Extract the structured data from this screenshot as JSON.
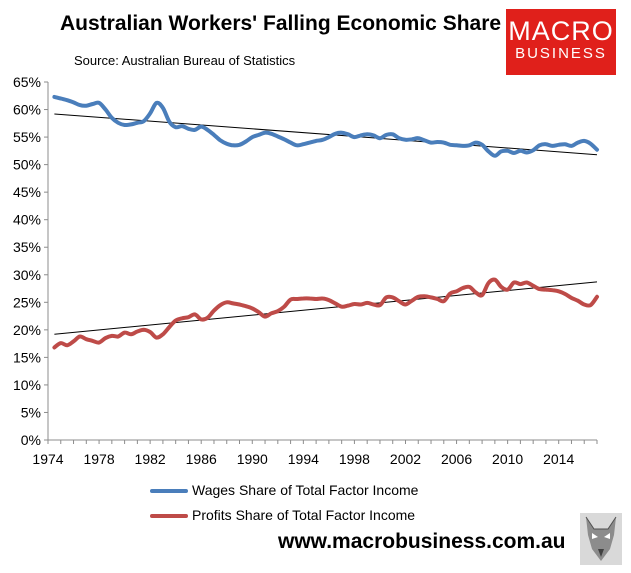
{
  "title": "Australian Workers' Falling Economic Share",
  "source": "Source: Australian Bureau of Statistics",
  "logo": {
    "line1": "MACRO",
    "line2": "BUSINESS",
    "color": "#e0201b"
  },
  "website": "www.macrobusiness.com.au",
  "chart_data": {
    "type": "line",
    "title": "Australian Workers' Falling Economic Share",
    "xlabel": "",
    "ylabel": "",
    "xlim": [
      1974,
      2017
    ],
    "ylim": [
      0,
      65
    ],
    "x_ticks": [
      1974,
      1978,
      1982,
      1986,
      1990,
      1994,
      1998,
      2002,
      2006,
      2010,
      2014
    ],
    "y_ticks": [
      "0%",
      "5%",
      "10%",
      "15%",
      "20%",
      "25%",
      "30%",
      "35%",
      "40%",
      "45%",
      "50%",
      "55%",
      "60%",
      "65%"
    ],
    "grid": false,
    "legend_position": "bottom",
    "series": [
      {
        "name": "Wages Share of Total Factor Income",
        "color": "#4a7ebb",
        "points": [
          [
            1974.5,
            62.3
          ],
          [
            1975,
            62.0
          ],
          [
            1975.5,
            61.7
          ],
          [
            1976,
            61.3
          ],
          [
            1976.5,
            60.8
          ],
          [
            1977,
            60.7
          ],
          [
            1977.5,
            61.0
          ],
          [
            1978,
            61.2
          ],
          [
            1978.5,
            60.0
          ],
          [
            1979,
            58.5
          ],
          [
            1979.5,
            57.6
          ],
          [
            1980,
            57.2
          ],
          [
            1980.5,
            57.3
          ],
          [
            1981,
            57.6
          ],
          [
            1981.5,
            57.9
          ],
          [
            1982,
            59.3
          ],
          [
            1982.5,
            61.2
          ],
          [
            1983,
            60.3
          ],
          [
            1983.5,
            57.8
          ],
          [
            1984,
            56.8
          ],
          [
            1984.5,
            57.0
          ],
          [
            1985,
            56.5
          ],
          [
            1985.5,
            56.3
          ],
          [
            1986,
            56.9
          ],
          [
            1986.5,
            56.3
          ],
          [
            1987,
            55.4
          ],
          [
            1987.5,
            54.4
          ],
          [
            1988,
            53.8
          ],
          [
            1988.5,
            53.5
          ],
          [
            1989,
            53.6
          ],
          [
            1989.5,
            54.2
          ],
          [
            1990,
            55.0
          ],
          [
            1990.5,
            55.4
          ],
          [
            1991,
            55.8
          ],
          [
            1991.5,
            55.6
          ],
          [
            1992,
            55.1
          ],
          [
            1992.5,
            54.6
          ],
          [
            1993,
            54.0
          ],
          [
            1993.5,
            53.5
          ],
          [
            1994,
            53.7
          ],
          [
            1994.5,
            54.0
          ],
          [
            1995,
            54.3
          ],
          [
            1995.5,
            54.5
          ],
          [
            1996,
            55.0
          ],
          [
            1996.5,
            55.6
          ],
          [
            1997,
            55.8
          ],
          [
            1997.5,
            55.5
          ],
          [
            1998,
            55.0
          ],
          [
            1998.5,
            55.3
          ],
          [
            1999,
            55.5
          ],
          [
            1999.5,
            55.3
          ],
          [
            2000,
            54.8
          ],
          [
            2000.5,
            55.4
          ],
          [
            2001,
            55.5
          ],
          [
            2001.5,
            54.8
          ],
          [
            2002,
            54.5
          ],
          [
            2002.5,
            54.6
          ],
          [
            2003,
            54.8
          ],
          [
            2003.5,
            54.4
          ],
          [
            2004,
            54.0
          ],
          [
            2004.5,
            54.1
          ],
          [
            2005,
            54.0
          ],
          [
            2005.5,
            53.6
          ],
          [
            2006,
            53.5
          ],
          [
            2006.5,
            53.4
          ],
          [
            2007,
            53.5
          ],
          [
            2007.5,
            54.0
          ],
          [
            2008,
            53.6
          ],
          [
            2008.5,
            52.4
          ],
          [
            2009,
            51.6
          ],
          [
            2009.5,
            52.4
          ],
          [
            2010,
            52.5
          ],
          [
            2010.5,
            52.1
          ],
          [
            2011,
            52.5
          ],
          [
            2011.5,
            52.2
          ],
          [
            2012,
            52.6
          ],
          [
            2012.5,
            53.5
          ],
          [
            2013,
            53.7
          ],
          [
            2013.5,
            53.4
          ],
          [
            2014,
            53.6
          ],
          [
            2014.5,
            53.7
          ],
          [
            2015,
            53.4
          ],
          [
            2015.5,
            54.0
          ],
          [
            2016,
            54.3
          ],
          [
            2016.5,
            53.8
          ],
          [
            2017,
            52.7
          ]
        ]
      },
      {
        "name": "Profits Share of Total Factor Income",
        "color": "#be4b48",
        "points": [
          [
            1974.5,
            16.8
          ],
          [
            1975,
            17.6
          ],
          [
            1975.5,
            17.2
          ],
          [
            1976,
            17.9
          ],
          [
            1976.5,
            18.8
          ],
          [
            1977,
            18.3
          ],
          [
            1977.5,
            18.0
          ],
          [
            1978,
            17.7
          ],
          [
            1978.5,
            18.5
          ],
          [
            1979,
            18.9
          ],
          [
            1979.5,
            18.8
          ],
          [
            1980,
            19.5
          ],
          [
            1980.5,
            19.2
          ],
          [
            1981,
            19.7
          ],
          [
            1981.5,
            20.0
          ],
          [
            1982,
            19.6
          ],
          [
            1982.5,
            18.6
          ],
          [
            1983,
            19.2
          ],
          [
            1983.5,
            20.5
          ],
          [
            1984,
            21.7
          ],
          [
            1984.5,
            22.1
          ],
          [
            1985,
            22.3
          ],
          [
            1985.5,
            22.8
          ],
          [
            1986,
            21.9
          ],
          [
            1986.5,
            22.2
          ],
          [
            1987,
            23.5
          ],
          [
            1987.5,
            24.5
          ],
          [
            1988,
            25.0
          ],
          [
            1988.5,
            24.8
          ],
          [
            1989,
            24.6
          ],
          [
            1989.5,
            24.3
          ],
          [
            1990,
            23.9
          ],
          [
            1990.5,
            23.2
          ],
          [
            1991,
            22.4
          ],
          [
            1991.5,
            23.0
          ],
          [
            1992,
            23.4
          ],
          [
            1992.5,
            24.2
          ],
          [
            1993,
            25.5
          ],
          [
            1993.5,
            25.6
          ],
          [
            1994,
            25.7
          ],
          [
            1994.5,
            25.7
          ],
          [
            1995,
            25.6
          ],
          [
            1995.5,
            25.7
          ],
          [
            1996,
            25.4
          ],
          [
            1996.5,
            24.8
          ],
          [
            1997,
            24.2
          ],
          [
            1997.5,
            24.4
          ],
          [
            1998,
            24.7
          ],
          [
            1998.5,
            24.6
          ],
          [
            1999,
            24.9
          ],
          [
            1999.5,
            24.6
          ],
          [
            2000,
            24.5
          ],
          [
            2000.5,
            25.9
          ],
          [
            2001,
            25.9
          ],
          [
            2001.5,
            25.2
          ],
          [
            2002,
            24.6
          ],
          [
            2002.5,
            25.3
          ],
          [
            2003,
            26.0
          ],
          [
            2003.5,
            26.1
          ],
          [
            2004,
            25.9
          ],
          [
            2004.5,
            25.6
          ],
          [
            2005,
            25.2
          ],
          [
            2005.5,
            26.6
          ],
          [
            2006,
            27.0
          ],
          [
            2006.5,
            27.6
          ],
          [
            2007,
            27.8
          ],
          [
            2007.5,
            26.8
          ],
          [
            2008,
            26.3
          ],
          [
            2008.5,
            28.5
          ],
          [
            2009,
            29.1
          ],
          [
            2009.5,
            27.8
          ],
          [
            2010,
            27.3
          ],
          [
            2010.5,
            28.6
          ],
          [
            2011,
            28.3
          ],
          [
            2011.5,
            28.6
          ],
          [
            2012,
            28.0
          ],
          [
            2012.5,
            27.4
          ],
          [
            2013,
            27.3
          ],
          [
            2013.5,
            27.2
          ],
          [
            2014,
            27.0
          ],
          [
            2014.5,
            26.5
          ],
          [
            2015,
            25.8
          ],
          [
            2015.5,
            25.3
          ],
          [
            2016,
            24.6
          ],
          [
            2016.5,
            24.5
          ],
          [
            2017,
            26.0
          ]
        ]
      }
    ],
    "trendlines": [
      {
        "series": "Wages Share of Total Factor Income",
        "color": "#000000",
        "from": [
          1974.5,
          59.2
        ],
        "to": [
          2017,
          51.8
        ]
      },
      {
        "series": "Profits Share of Total Factor Income",
        "color": "#000000",
        "from": [
          1974.5,
          19.2
        ],
        "to": [
          2017,
          28.7
        ]
      }
    ]
  }
}
